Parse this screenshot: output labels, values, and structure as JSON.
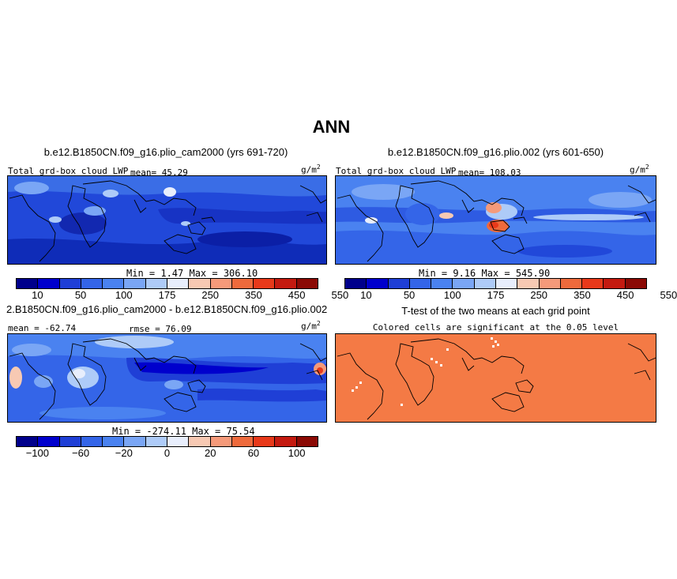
{
  "figure": {
    "main_title": "ANN"
  },
  "panels": [
    {
      "title": "b.e12.B1850CN.f09_g16.plio_cam2000 (yrs 691-720)",
      "left_label": "Total grd-box cloud LWP",
      "mean_text": "mean=  45.29",
      "units": "g/m",
      "units_sup": "2",
      "minmax": "Min =   1.47 Max = 306.10"
    },
    {
      "title": "b.e12.B1850CN.f09_g16.plio.002 (yrs 601-650)",
      "left_label": "Total grd-box cloud LWP",
      "mean_text": "mean= 108.03",
      "units": "g/m",
      "units_sup": "2",
      "minmax": "Min =   9.16 Max = 545.90"
    },
    {
      "title": "2.B1850CN.f09_g16.plio_cam2000 - b.e12.B1850CN.f09_g16.plio.002",
      "left_label": "mean = -62.74",
      "mean_text": "rmse =  76.09",
      "units": "g/m",
      "units_sup": "2",
      "minmax": "Min = -274.11 Max =  75.54"
    },
    {
      "title": "T-test of the two means at each grid point",
      "subtitle": "Colored cells are significant at the 0.05 level"
    }
  ],
  "colors": {
    "abs_scale": [
      "#00008b",
      "#0000cd",
      "#1f3fd6",
      "#3465e8",
      "#4a82f0",
      "#7aa6f5",
      "#aecbf8",
      "#e8eefc",
      "#f7c9b3",
      "#f59a7a",
      "#ee6a3c",
      "#e8391a",
      "#c41a10",
      "#8b0a05"
    ],
    "diff_scale": [
      "#00008b",
      "#0000cd",
      "#1f3fd6",
      "#3465e8",
      "#4a82f0",
      "#7aa6f5",
      "#aecbf8",
      "#e8eefc",
      "#f7c9b3",
      "#f59a7a",
      "#ee6a3c",
      "#e8391a",
      "#c41a10",
      "#8b0a05"
    ],
    "ttest_fill": "#f47a45"
  },
  "chart_data": [
    {
      "type": "heatmap",
      "title": "b.e12.B1850CN.f09_g16.plio_cam2000 (yrs 691-720)",
      "variable": "Total grd-box cloud LWP",
      "units": "g/m2",
      "mean": 45.29,
      "min": 1.47,
      "max": 306.1,
      "colorbar_levels": [
        10,
        25,
        50,
        75,
        100,
        125,
        175,
        200,
        250,
        300,
        350,
        400,
        450,
        500,
        550
      ],
      "colorbar_tick_labels": [
        "10",
        "50",
        "100",
        "175",
        "250",
        "350",
        "450",
        "550"
      ]
    },
    {
      "type": "heatmap",
      "title": "b.e12.B1850CN.f09_g16.plio.002 (yrs 601-650)",
      "variable": "Total grd-box cloud LWP",
      "units": "g/m2",
      "mean": 108.03,
      "min": 9.16,
      "max": 545.9,
      "colorbar_levels": [
        10,
        25,
        50,
        75,
        100,
        125,
        175,
        200,
        250,
        300,
        350,
        400,
        450,
        500,
        550
      ],
      "colorbar_tick_labels": [
        "10",
        "50",
        "100",
        "175",
        "250",
        "350",
        "450",
        "550"
      ]
    },
    {
      "type": "heatmap",
      "title": "2.B1850CN.f09_g16.plio_cam2000 - b.e12.B1850CN.f09_g16.plio.002",
      "units": "g/m2",
      "mean": -62.74,
      "rmse": 76.09,
      "min": -274.11,
      "max": 75.54,
      "colorbar_levels": [
        -100,
        -80,
        -60,
        -40,
        -20,
        -10,
        0,
        10,
        20,
        40,
        60,
        80,
        100
      ],
      "colorbar_tick_labels": [
        "-100",
        "-60",
        "-20",
        "0",
        "20",
        "60",
        "100"
      ]
    },
    {
      "type": "heatmap",
      "title": "T-test of the two means at each grid point",
      "subtitle": "Colored cells are significant at the 0.05 level"
    }
  ]
}
